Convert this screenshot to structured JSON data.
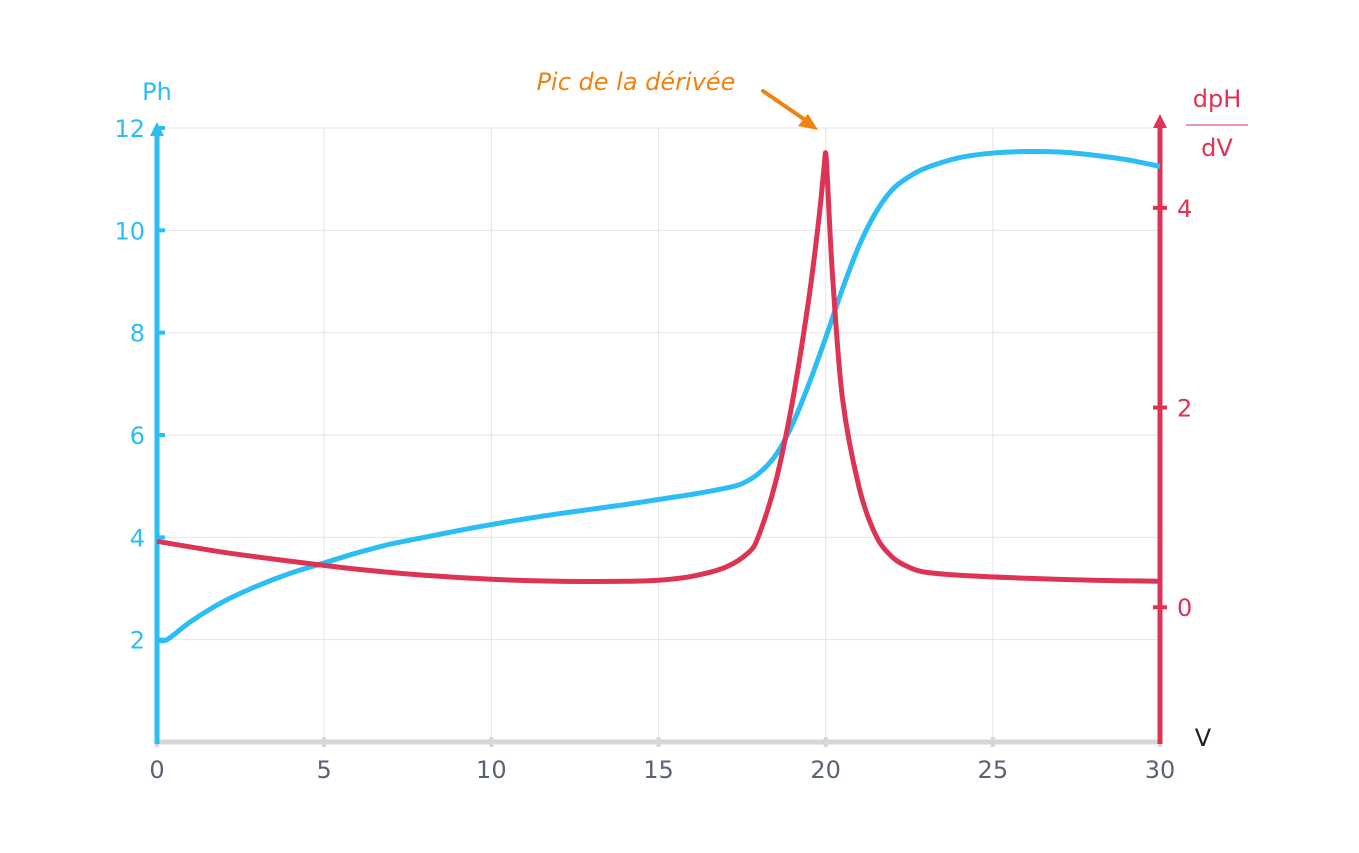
{
  "colors": {
    "left_axis": "#2bbdf3",
    "right_axis": "#dd3355",
    "x_axis": "#d6d6d6",
    "x_tick_text": "#5a6275",
    "grid": "#e5e5e5",
    "annotation": "#f0820f",
    "v_label": "#222222"
  },
  "chart_data": {
    "type": "line",
    "x_axis": {
      "label": "V",
      "range": [
        0,
        30
      ],
      "ticks": [
        0,
        5,
        10,
        15,
        20,
        25,
        30
      ],
      "tick_labels": [
        "0",
        "5",
        "10",
        "15",
        "20",
        "25",
        "30"
      ]
    },
    "y_left": {
      "label": "Ph",
      "range": [
        0,
        12
      ],
      "ticks": [
        2,
        4,
        6,
        8,
        10,
        12
      ],
      "tick_labels": [
        "2",
        "4",
        "6",
        "8",
        "10",
        "12"
      ]
    },
    "y_right": {
      "label_num": "dpH",
      "label_den": "dV",
      "range": [
        -1.35,
        4.8
      ],
      "ticks": [
        0,
        2,
        4
      ],
      "tick_labels": [
        "0",
        "2",
        "4"
      ]
    },
    "grid": true,
    "series": [
      {
        "axis": "left",
        "color": "#2bbdf3",
        "x": [
          0,
          0.3,
          1,
          2,
          3,
          4,
          5,
          6,
          7,
          8,
          9,
          10,
          11,
          12,
          13,
          14,
          15,
          16,
          17,
          17.5,
          18,
          18.5,
          19,
          19.5,
          20,
          20.5,
          21,
          21.5,
          22,
          22.5,
          23,
          24,
          25,
          26,
          27,
          28,
          29,
          30
        ],
        "y": [
          2.0,
          2.0,
          2.35,
          2.75,
          3.05,
          3.3,
          3.5,
          3.7,
          3.87,
          4.0,
          4.13,
          4.25,
          4.36,
          4.46,
          4.55,
          4.64,
          4.74,
          4.84,
          4.96,
          5.05,
          5.25,
          5.6,
          6.2,
          7.0,
          7.9,
          8.85,
          9.7,
          10.35,
          10.8,
          11.05,
          11.22,
          11.42,
          11.51,
          11.54,
          11.53,
          11.47,
          11.38,
          11.25
        ]
      },
      {
        "axis": "right",
        "color": "#dd3355",
        "x": [
          0,
          2,
          4,
          6,
          8,
          10,
          12,
          14,
          15,
          16,
          17,
          17.7,
          18,
          18.5,
          19,
          19.5,
          19.8,
          19.95,
          20.0,
          20.05,
          20.2,
          20.5,
          21,
          21.5,
          22,
          22.5,
          23,
          24,
          26,
          28,
          30
        ],
        "y": [
          0.66,
          0.55,
          0.46,
          0.38,
          0.32,
          0.28,
          0.26,
          0.26,
          0.27,
          0.31,
          0.4,
          0.55,
          0.72,
          1.25,
          2.05,
          3.1,
          3.9,
          4.4,
          4.55,
          4.3,
          3.35,
          2.1,
          1.2,
          0.72,
          0.5,
          0.4,
          0.35,
          0.32,
          0.29,
          0.27,
          0.26
        ]
      }
    ],
    "annotations": [
      {
        "text": "Pic de la dérivée",
        "target_x": 20
      }
    ]
  }
}
